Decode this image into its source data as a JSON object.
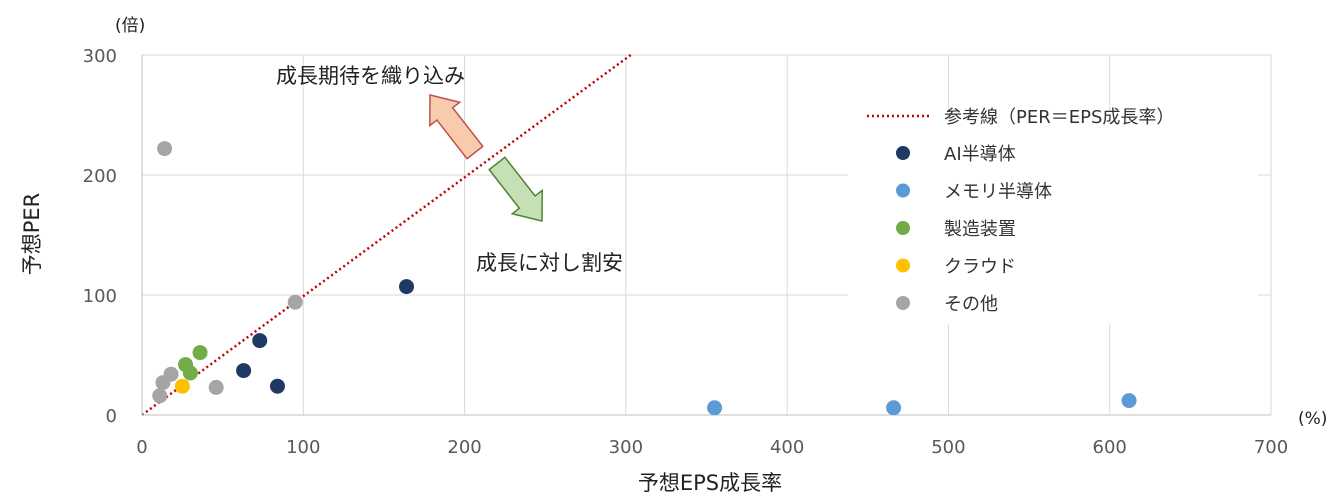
{
  "chart_data": {
    "type": "scatter",
    "xlabel": "予想EPS成長率",
    "ylabel": "予想PER",
    "x_unit": "(%)",
    "y_unit": "(倍)",
    "xlim": [
      0,
      700
    ],
    "ylim": [
      0,
      300
    ],
    "x_ticks": [
      0,
      100,
      200,
      300,
      400,
      500,
      600,
      700
    ],
    "y_ticks": [
      0,
      100,
      200,
      300
    ],
    "grid": true,
    "legend_position": "right",
    "reference_line": {
      "name": "参考線（PER＝EPS成長率）",
      "color": "#c00000",
      "style": "dotted",
      "points": [
        [
          0,
          0
        ],
        [
          303,
          300
        ]
      ]
    },
    "series": [
      {
        "name": "AI半導体",
        "color": "#1f3864",
        "points": [
          [
            63,
            37
          ],
          [
            73,
            62
          ],
          [
            84,
            24
          ],
          [
            164,
            107
          ]
        ]
      },
      {
        "name": "メモリ半導体",
        "color": "#5b9bd5",
        "points": [
          [
            355,
            6
          ],
          [
            466,
            6
          ],
          [
            612,
            12
          ]
        ]
      },
      {
        "name": "製造装置",
        "color": "#70ad47",
        "points": [
          [
            27,
            42
          ],
          [
            30,
            35
          ],
          [
            36,
            52
          ]
        ]
      },
      {
        "name": "クラウド",
        "color": "#ffc000",
        "points": [
          [
            25,
            24
          ]
        ]
      },
      {
        "name": "その他",
        "color": "#a5a5a5",
        "points": [
          [
            11,
            16
          ],
          [
            13,
            27
          ],
          [
            14,
            222
          ],
          [
            18,
            34
          ],
          [
            46,
            23
          ],
          [
            95,
            94
          ]
        ]
      }
    ],
    "annotations": [
      {
        "text": "成長期待を織り込み",
        "arrow": "up-left",
        "color": "#c0504d",
        "fill": "#f8cbad"
      },
      {
        "text": "成長に対し割安",
        "arrow": "down-right",
        "color": "#548235",
        "fill": "#c5e0b4"
      }
    ]
  }
}
